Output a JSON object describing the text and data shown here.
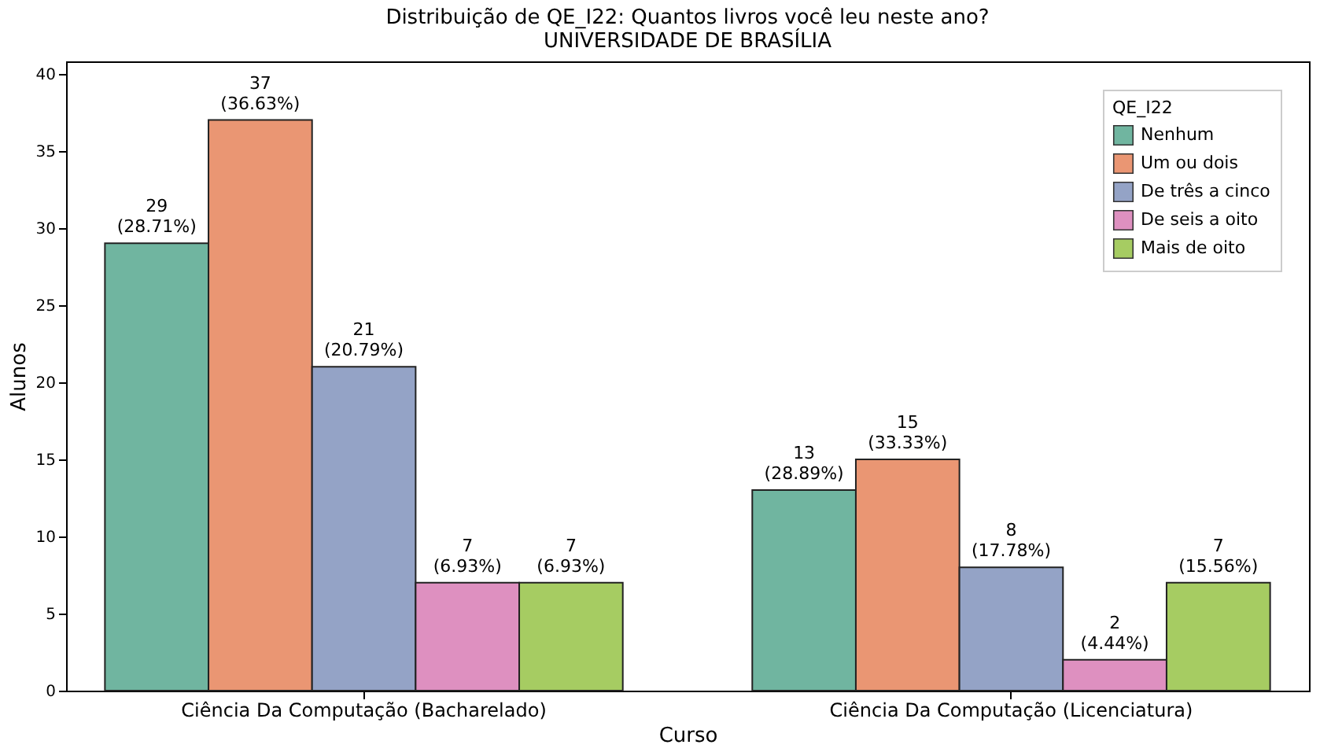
{
  "chart_data": {
    "type": "bar",
    "title": "Distribuição de QE_I22: Quantos livros você leu neste ano?",
    "subtitle": "UNIVERSIDADE DE BRASÍLIA",
    "xlabel": "Curso",
    "ylabel": "Alunos",
    "legend_title": "QE_I22",
    "legend": "top right",
    "grid": false,
    "categories": [
      "Ciência Da Computação (Bacharelado)",
      "Ciência Da Computação (Licenciatura)"
    ],
    "ylim": [
      0,
      40.8
    ],
    "yticks": [
      0,
      5,
      10,
      15,
      20,
      25,
      30,
      35,
      40
    ],
    "series": [
      {
        "name": "Nenhum",
        "color": "#70b5a0",
        "values": [
          29,
          13
        ],
        "value_labels": [
          "29\n(28.71%)",
          "13\n(28.89%)"
        ]
      },
      {
        "name": "Um ou dois",
        "color": "#ea9673",
        "values": [
          37,
          15
        ],
        "value_labels": [
          "37\n(36.63%)",
          "15\n(33.33%)"
        ]
      },
      {
        "name": "De três a cinco",
        "color": "#94a3c6",
        "values": [
          21,
          8
        ],
        "value_labels": [
          "21\n(20.79%)",
          "8\n(17.78%)"
        ]
      },
      {
        "name": "De seis a oito",
        "color": "#de90c0",
        "values": [
          7,
          2
        ],
        "value_labels": [
          "7\n(6.93%)",
          "2\n(4.44%)"
        ]
      },
      {
        "name": "Mais de oito",
        "color": "#a6cc62",
        "values": [
          7,
          7
        ],
        "value_labels": [
          "7\n(6.93%)",
          "7\n(15.56%)"
        ]
      }
    ]
  }
}
